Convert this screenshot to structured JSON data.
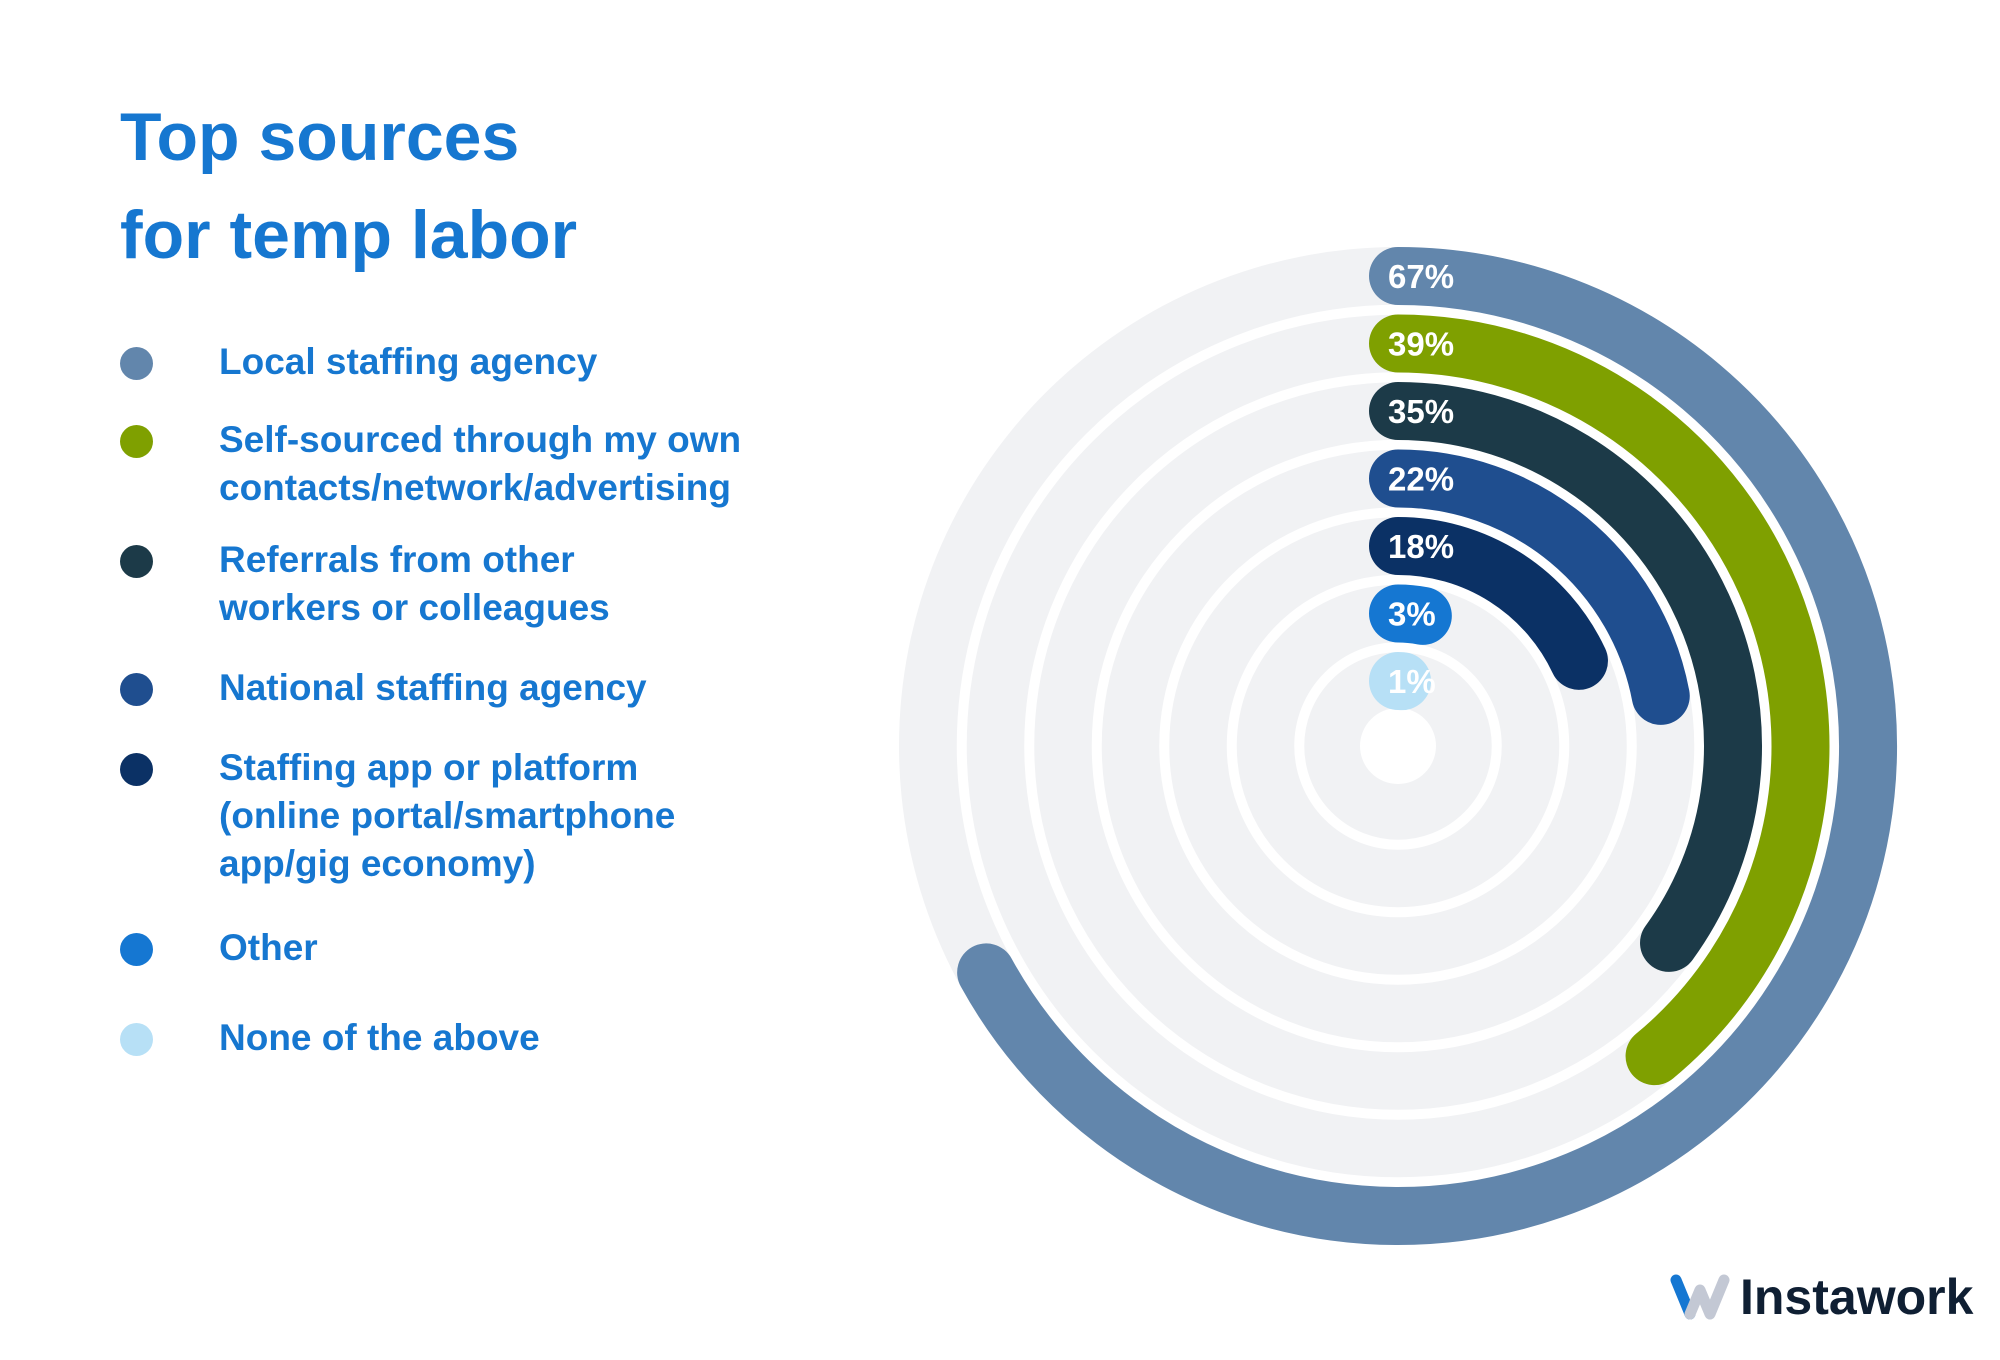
{
  "title_lines": [
    "Top sources",
    "for temp labor"
  ],
  "brand": "Instawork",
  "chart_data": {
    "type": "radial-bar",
    "title": "Top sources for temp labor",
    "unit": "%",
    "max": 100,
    "legend_position": "left",
    "series": [
      {
        "name": "Local staffing agency",
        "value": 67,
        "label": "67%",
        "color": "#6286ac"
      },
      {
        "name": "Self-sourced through my own\ncontacts/network/advertising",
        "value": 39,
        "label": "39%",
        "color": "#7fa000"
      },
      {
        "name": "Referrals from other\nworkers or colleagues",
        "value": 35,
        "label": "35%",
        "color": "#1c3a48"
      },
      {
        "name": "National staffing agency",
        "value": 22,
        "label": "22%",
        "color": "#1f4e8f"
      },
      {
        "name": "Staffing app or platform\n(online portal/smartphone\napp/gig economy)",
        "value": 18,
        "label": "18%",
        "color": "#0b3165"
      },
      {
        "name": "Other",
        "value": 3,
        "label": "3%",
        "color": "#1577d2"
      },
      {
        "name": "None of the above",
        "value": 1,
        "label": "1%",
        "color": "#b7e0f6"
      }
    ],
    "track_color": "#f1f2f4",
    "text_color": "#1677d0"
  }
}
